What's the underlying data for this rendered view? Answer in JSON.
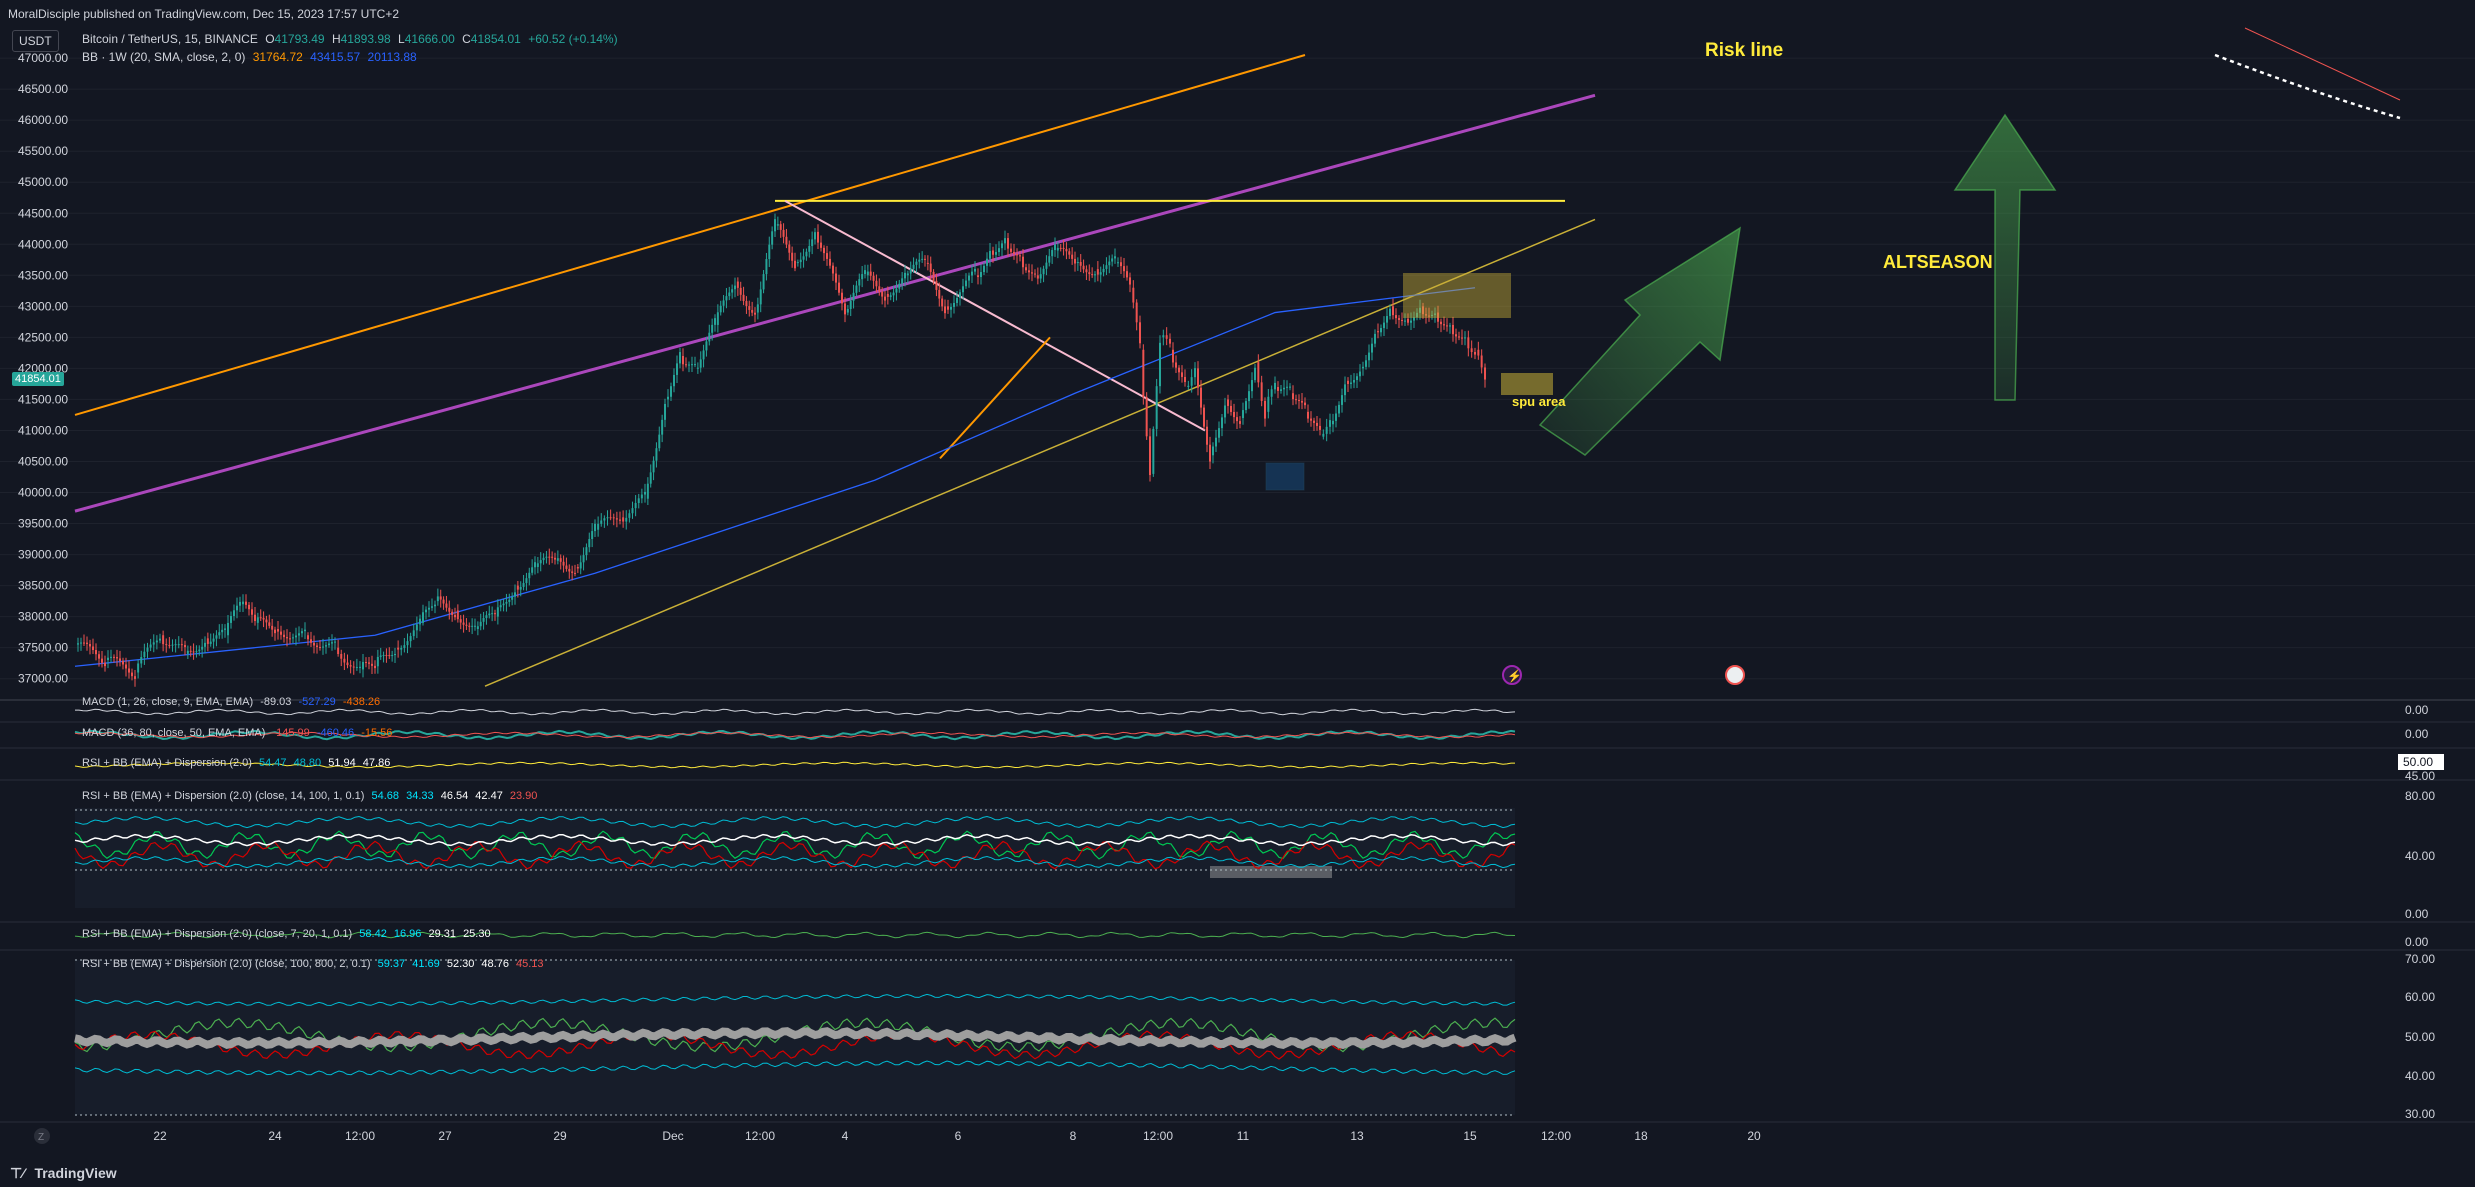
{
  "header": {
    "published_by": "MoralDisciple published on TradingView.com, Dec 15, 2023 17:57 UTC+2"
  },
  "symbol_box": "USDT",
  "main_legend": {
    "symbol": "Bitcoin / TetherUS, 15, BINANCE",
    "o_label": "O",
    "o": "41793.49",
    "h_label": "H",
    "h": "41893.98",
    "l_label": "L",
    "l": "41666.00",
    "c_label": "C",
    "c": "41854.01",
    "change": "+60.52 (+0.14%)"
  },
  "bb_legend": {
    "name": "BB · 1W (20, SMA, close, 2, 0)",
    "v1": "31764.72",
    "v2": "43415.57",
    "v3": "20113.88"
  },
  "current_price": "41854.01",
  "annotations": {
    "risk_line": "Risk line",
    "altseason": "ALTSEASON",
    "spu_area": "spu area"
  },
  "panes": {
    "macd1": {
      "name": "MACD (1, 26, close, 9, EMA, EMA)",
      "v1": "-89.03",
      "v2": "-527.29",
      "v3": "-438.26",
      "scale": [
        "0.00"
      ]
    },
    "macd2": {
      "name": "MACD (36, 80, close, 50, EMA, EMA)",
      "v1": "-145.99",
      "v2": "-460.46",
      "v3": "-15.56",
      "scale": [
        "0.00"
      ]
    },
    "rsi_small": {
      "name": "RSI + BB (EMA) + Dispersion (2.0)",
      "v1": "54.47",
      "v2": "48.80",
      "v3": "51.94",
      "v4": "47.86",
      "scale_box": "50.00",
      "scale_below": "45.00"
    },
    "rsi1": {
      "name": "RSI + BB (EMA) + Dispersion (2.0) (close, 14, 100, 1, 0.1)",
      "v1": "54.68",
      "v2": "34.33",
      "v3": "46.54",
      "v4": "42.47",
      "v5": "23.90",
      "scale": [
        "80.00",
        "40.00",
        "0.00"
      ]
    },
    "rsi2": {
      "name": "RSI + BB (EMA) + Dispersion (2.0) (close, 7, 20, 1, 0.1)",
      "v1": "58.42",
      "v2": "16.96",
      "v3": "29.31",
      "v4": "25.30",
      "scale": [
        "0.00"
      ]
    },
    "rsi3": {
      "name": "RSI + BB (EMA) + Dispersion (2.0) (close, 100, 800, 2, 0.1)",
      "v1": "59.37",
      "v2": "41.69",
      "v3": "52.30",
      "v4": "48.76",
      "v5": "45.13",
      "scale": [
        "70.00",
        "60.00",
        "50.00",
        "40.00",
        "30.00"
      ]
    }
  },
  "footer": {
    "brand": "TradingView"
  },
  "colors": {
    "background": "#131722",
    "up": "#26a69a",
    "down": "#ef5350",
    "channel_orange": "#ff9800",
    "trend_purple": "#9c27b0",
    "annotation_yellow": "#ffeb3b",
    "arrow_green": "#4caf50"
  },
  "chart_data": {
    "type": "candlestick",
    "y_ticks": [
      "47000.00",
      "46500.00",
      "46000.00",
      "45500.00",
      "45000.00",
      "44500.00",
      "44000.00",
      "43500.00",
      "43000.00",
      "42500.00",
      "42000.00",
      "41500.00",
      "41000.00",
      "40500.00",
      "40000.00",
      "39500.00",
      "39000.00",
      "38500.00",
      "38000.00",
      "37500.00",
      "37000.00"
    ],
    "ylim": [
      36850,
      47050
    ],
    "x_ticks": [
      "22",
      "24",
      "12:00",
      "27",
      "29",
      "Dec",
      "12:00",
      "4",
      "6",
      "8",
      "12:00",
      "11",
      "13",
      "15",
      "12:00",
      "18",
      "20"
    ],
    "price_path": [
      [
        0,
        37550
      ],
      [
        30,
        37300
      ],
      [
        60,
        37100
      ],
      [
        85,
        37700
      ],
      [
        110,
        37400
      ],
      [
        130,
        37650
      ],
      [
        150,
        37700
      ],
      [
        165,
        38200
      ],
      [
        180,
        37900
      ],
      [
        200,
        37800
      ],
      [
        230,
        37700
      ],
      [
        260,
        37500
      ],
      [
        285,
        37150
      ],
      [
        300,
        37200
      ],
      [
        320,
        37500
      ],
      [
        345,
        37900
      ],
      [
        360,
        38250
      ],
      [
        380,
        38100
      ],
      [
        400,
        37800
      ],
      [
        420,
        38000
      ],
      [
        440,
        38500
      ],
      [
        460,
        38800
      ],
      [
        480,
        38900
      ],
      [
        500,
        38800
      ],
      [
        520,
        39400
      ],
      [
        545,
        39600
      ],
      [
        570,
        39900
      ],
      [
        590,
        41500
      ],
      [
        605,
        42200
      ],
      [
        620,
        42000
      ],
      [
        640,
        42700
      ],
      [
        660,
        43400
      ],
      [
        680,
        42900
      ],
      [
        700,
        44300
      ],
      [
        720,
        43700
      ],
      [
        740,
        44200
      ],
      [
        770,
        42900
      ],
      [
        790,
        43500
      ],
      [
        810,
        43200
      ],
      [
        830,
        43500
      ],
      [
        850,
        43700
      ],
      [
        870,
        43000
      ],
      [
        900,
        43500
      ],
      [
        915,
        43900
      ],
      [
        930,
        44100
      ],
      [
        945,
        43800
      ],
      [
        960,
        43500
      ],
      [
        980,
        43900
      ],
      [
        1000,
        43700
      ],
      [
        1020,
        43600
      ],
      [
        1040,
        43700
      ],
      [
        1055,
        43300
      ],
      [
        1065,
        42300
      ],
      [
        1075,
        40300
      ],
      [
        1085,
        42500
      ],
      [
        1095,
        42300
      ],
      [
        1110,
        41700
      ],
      [
        1120,
        42000
      ],
      [
        1135,
        40600
      ],
      [
        1150,
        41500
      ],
      [
        1165,
        41200
      ],
      [
        1180,
        42100
      ],
      [
        1190,
        41300
      ],
      [
        1200,
        41700
      ],
      [
        1215,
        41600
      ],
      [
        1230,
        41300
      ],
      [
        1245,
        40900
      ],
      [
        1255,
        41100
      ],
      [
        1270,
        41800
      ],
      [
        1285,
        42000
      ],
      [
        1300,
        42600
      ],
      [
        1315,
        43000
      ],
      [
        1330,
        42800
      ],
      [
        1345,
        43000
      ],
      [
        1360,
        42900
      ],
      [
        1375,
        42700
      ],
      [
        1390,
        42500
      ],
      [
        1400,
        42300
      ],
      [
        1410,
        41854
      ]
    ],
    "drawings": {
      "orange_channel_upper": [
        [
          0,
          41250
        ],
        [
          1230,
          47050
        ]
      ],
      "purple_trend": [
        [
          0,
          39700
        ],
        [
          1520,
          46400
        ]
      ],
      "yellow_lower": [
        [
          410,
          36880
        ],
        [
          1520,
          44400
        ]
      ],
      "horizontal_resistance": [
        [
          700,
          44700
        ],
        [
          1490,
          44700
        ]
      ],
      "descending_pink": [
        [
          710,
          44700
        ],
        [
          1130,
          41000
        ]
      ],
      "orange_triangle_lower": [
        [
          865,
          40550
        ],
        [
          975,
          42500
        ]
      ]
    }
  }
}
